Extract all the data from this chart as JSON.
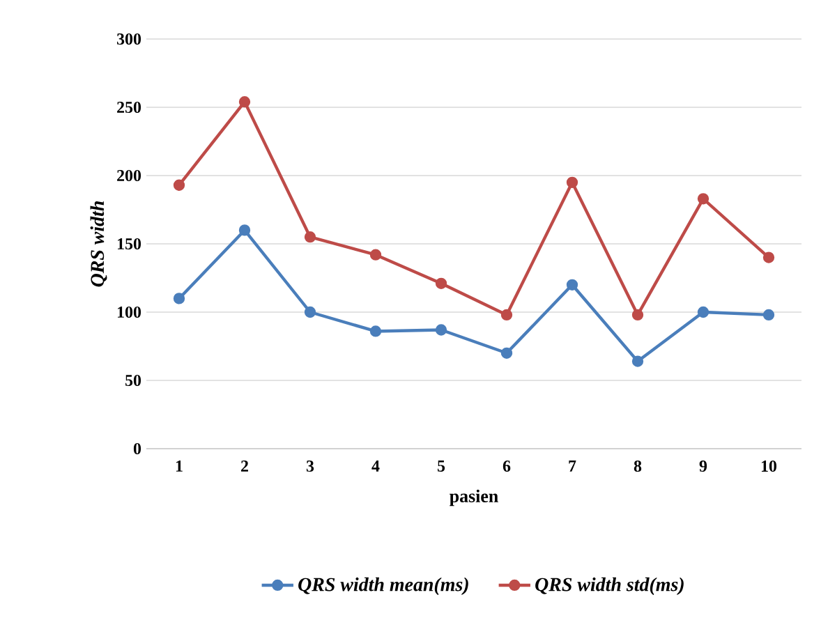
{
  "chart_data": {
    "type": "line",
    "xlabel": "pasien",
    "ylabel": "QRS width",
    "categories": [
      "1",
      "2",
      "3",
      "4",
      "5",
      "6",
      "7",
      "8",
      "9",
      "10"
    ],
    "series": [
      {
        "name": "QRS width mean(ms)",
        "color": "#4a7ebb",
        "values": [
          110,
          160,
          100,
          86,
          87,
          70,
          120,
          64,
          100,
          98
        ]
      },
      {
        "name": "QRS width std(ms)",
        "color": "#be4b48",
        "values": [
          193,
          254,
          155,
          142,
          121,
          98,
          195,
          98,
          183,
          140
        ]
      }
    ],
    "ylim": [
      0,
      300
    ],
    "yticks": [
      0,
      50,
      100,
      150,
      200,
      250,
      300
    ],
    "grid": "y",
    "legend": "bottom",
    "marker": "circle",
    "line_style": "solid"
  }
}
